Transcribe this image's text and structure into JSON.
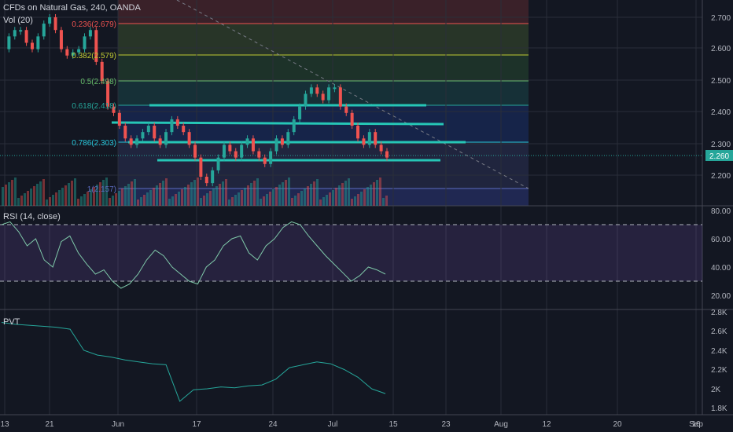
{
  "header": {
    "title": "CFDs on Natural Gas, 240, OANDA",
    "volume_label": "Vol (20)"
  },
  "price_axis": {
    "ticks": [
      "2.700",
      "2.600",
      "2.500",
      "2.400",
      "2.300",
      "2.200"
    ],
    "current_price": "2.260"
  },
  "fib_levels": [
    {
      "label": "0.236(2.679)",
      "color": "#ef5350"
    },
    {
      "label": "0.382(2.579)",
      "color": "#c0ca33"
    },
    {
      "label": "0.5(2.498)",
      "color": "#66bb6a"
    },
    {
      "label": "0.618(2.418)",
      "color": "#26a69a"
    },
    {
      "label": "0.786(2.303)",
      "color": "#26c6da"
    },
    {
      "label": "1(2.157)",
      "color": "#5c6bc0"
    }
  ],
  "rsi": {
    "label": "RSI (14, close)",
    "ticks": [
      "80.00",
      "60.00",
      "40.00",
      "20.00"
    ]
  },
  "pvt": {
    "label": "PVT",
    "ticks": [
      "2.8K",
      "2.6K",
      "2.4K",
      "2.2K",
      "2K",
      "1.8K"
    ]
  },
  "time_axis": {
    "labels": [
      "13",
      "21",
      "Jun",
      "17",
      "24",
      "Jul",
      "15",
      "23",
      "Aug",
      "12",
      "20",
      "Sep",
      "16"
    ]
  },
  "colors": {
    "background": "#131722",
    "up_candle": "#26a69a",
    "down_candle": "#ef5350",
    "trend_line": "#26c6b6",
    "rsi_line": "#7fc8a9",
    "rsi_band": "#7e57c2",
    "pvt_line": "#26a69a",
    "price_tag": "#26a69a"
  },
  "chart_data": {
    "type": "candlestick",
    "series": [
      {
        "values": [
          2.6,
          2.64,
          2.66,
          2.66,
          2.62,
          2.6,
          2.64,
          2.68,
          2.7,
          2.66,
          2.6,
          2.58,
          2.59,
          2.6,
          2.64,
          2.66,
          2.56,
          2.5,
          2.42,
          2.4,
          2.36,
          2.32,
          2.3,
          2.32,
          2.34,
          2.36,
          2.32,
          2.3,
          2.34,
          2.38,
          2.36,
          2.34,
          2.3,
          2.26,
          2.2,
          2.18,
          2.22,
          2.26,
          2.3,
          2.28,
          2.26,
          2.3,
          2.32,
          2.28,
          2.26,
          2.24,
          2.28,
          2.32,
          2.3,
          2.34,
          2.38,
          2.42,
          2.46,
          2.48,
          2.46,
          2.44,
          2.48,
          2.48,
          2.42,
          2.4,
          2.36,
          2.32,
          2.3,
          2.34,
          2.3,
          2.28,
          2.26
        ]
      }
    ],
    "pvt_values": [
      2690,
      2670,
      2660,
      2650,
      2640,
      2620,
      2400,
      2350,
      2330,
      2300,
      2280,
      2260,
      2250,
      1870,
      1990,
      2000,
      2020,
      2010,
      2030,
      2040,
      2100,
      2220,
      2250,
      2280,
      2260,
      2200,
      2120,
      2000,
      1950
    ],
    "rsi_values": [
      70,
      72,
      65,
      55,
      60,
      45,
      40,
      58,
      62,
      50,
      42,
      35,
      38,
      30,
      25,
      28,
      35,
      45,
      52,
      48,
      40,
      35,
      30,
      28,
      40,
      45,
      55,
      60,
      62,
      50,
      45,
      55,
      60,
      68,
      72,
      70,
      62,
      55,
      48,
      42,
      36,
      30,
      34,
      40,
      38,
      35
    ]
  }
}
